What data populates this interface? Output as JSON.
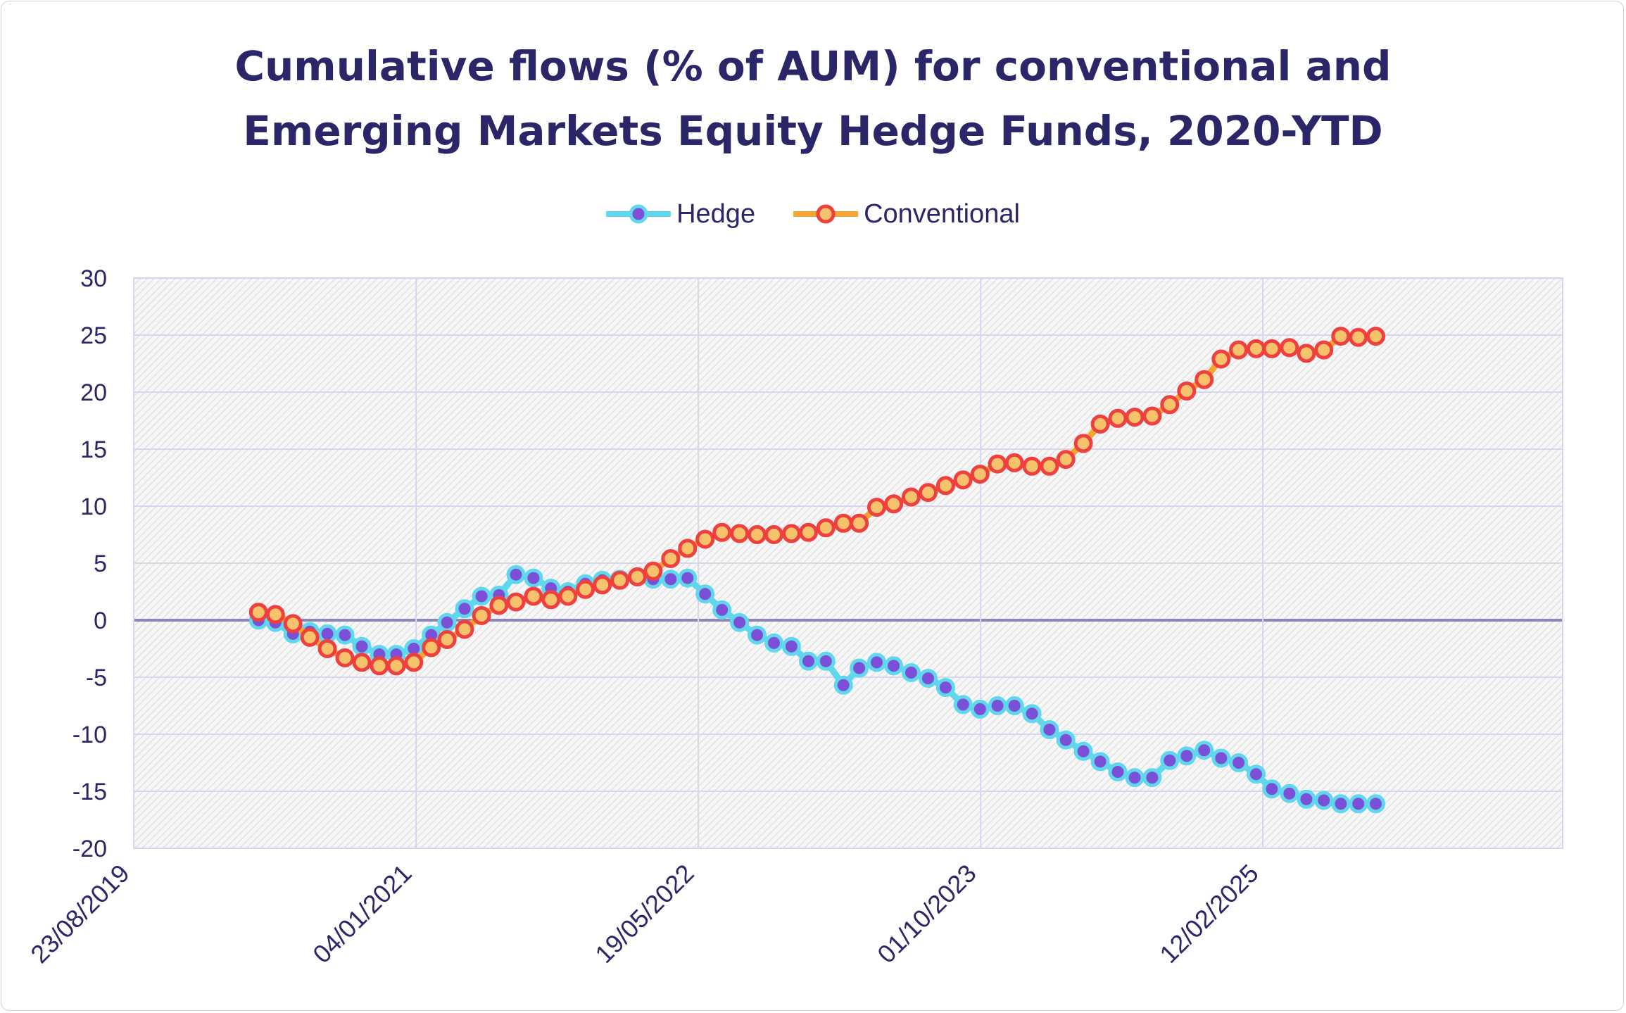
{
  "title": {
    "line1": "Cumulative flows (% of AUM) for conventional and",
    "line2": "Emerging Markets Equity Hedge Funds, 2020-YTD"
  },
  "colors": {
    "hedge_line": "#5fd8ee",
    "hedge_marker": "#7b4fd6",
    "conventional_line": "#f5a531",
    "conventional_marker_fill": "#f6c26c",
    "conventional_marker_stroke": "#ef3f3f",
    "title": "#2a2668",
    "grid": "#d6d6ee",
    "zero_line": "#8a86b8"
  },
  "chart_data": {
    "type": "line",
    "title": "Cumulative flows (% of AUM) for conventional and Emerging Markets Equity Hedge Funds, 2020-YTD",
    "xlabel": "",
    "ylabel": "",
    "x_axis": {
      "type": "date",
      "range": [
        "2019-08-23",
        "2026-07-28"
      ],
      "tick_labels": [
        "23/08/2019",
        "04/01/2021",
        "19/05/2022",
        "01/10/2023",
        "12/02/2025"
      ]
    },
    "ylim": [
      -20,
      30
    ],
    "yticks": [
      30,
      25,
      20,
      15,
      10,
      5,
      0,
      -5,
      -10,
      -15,
      -20
    ],
    "grid": true,
    "legend_position": "top",
    "series": [
      {
        "name": "Hedge",
        "points": [
          [
            "2020-03-31",
            0.0
          ],
          [
            "2020-04-30",
            -0.2
          ],
          [
            "2020-05-31",
            -1.2
          ],
          [
            "2020-06-30",
            -1.0
          ],
          [
            "2020-07-31",
            -1.2
          ],
          [
            "2020-08-31",
            -1.3
          ],
          [
            "2020-09-30",
            -2.3
          ],
          [
            "2020-10-31",
            -3.0
          ],
          [
            "2020-11-30",
            -3.0
          ],
          [
            "2020-12-31",
            -2.5
          ],
          [
            "2021-01-31",
            -1.3
          ],
          [
            "2021-02-28",
            -0.2
          ],
          [
            "2021-03-31",
            1.0
          ],
          [
            "2021-04-30",
            2.1
          ],
          [
            "2021-05-31",
            2.2
          ],
          [
            "2021-06-30",
            4.0
          ],
          [
            "2021-07-31",
            3.7
          ],
          [
            "2021-08-31",
            2.8
          ],
          [
            "2021-09-30",
            2.5
          ],
          [
            "2021-10-31",
            3.2
          ],
          [
            "2021-11-30",
            3.5
          ],
          [
            "2021-12-31",
            3.6
          ],
          [
            "2022-01-31",
            3.8
          ],
          [
            "2022-02-28",
            3.6
          ],
          [
            "2022-03-31",
            3.6
          ],
          [
            "2022-04-30",
            3.7
          ],
          [
            "2022-05-31",
            2.3
          ],
          [
            "2022-06-30",
            0.9
          ],
          [
            "2022-07-31",
            -0.2
          ],
          [
            "2022-08-31",
            -1.3
          ],
          [
            "2022-09-30",
            -2.0
          ],
          [
            "2022-10-31",
            -2.3
          ],
          [
            "2022-11-30",
            -3.6
          ],
          [
            "2022-12-31",
            -3.6
          ],
          [
            "2023-01-31",
            -5.7
          ],
          [
            "2023-02-28",
            -4.2
          ],
          [
            "2023-03-31",
            -3.7
          ],
          [
            "2023-04-30",
            -4.0
          ],
          [
            "2023-05-31",
            -4.6
          ],
          [
            "2023-06-30",
            -5.1
          ],
          [
            "2023-07-31",
            -5.9
          ],
          [
            "2023-08-31",
            -7.4
          ],
          [
            "2023-09-30",
            -7.8
          ],
          [
            "2023-10-31",
            -7.5
          ],
          [
            "2023-11-30",
            -7.5
          ],
          [
            "2023-12-31",
            -8.2
          ],
          [
            "2024-01-31",
            -9.6
          ],
          [
            "2024-02-29",
            -10.5
          ],
          [
            "2024-03-31",
            -11.5
          ],
          [
            "2024-04-30",
            -12.4
          ],
          [
            "2024-05-31",
            -13.3
          ],
          [
            "2024-06-30",
            -13.8
          ],
          [
            "2024-07-31",
            -13.8
          ],
          [
            "2024-08-31",
            -12.3
          ],
          [
            "2024-09-30",
            -11.9
          ],
          [
            "2024-10-31",
            -11.4
          ],
          [
            "2024-11-30",
            -12.1
          ],
          [
            "2024-12-31",
            -12.5
          ],
          [
            "2025-01-31",
            -13.5
          ],
          [
            "2025-02-28",
            -14.8
          ],
          [
            "2025-03-31",
            -15.2
          ],
          [
            "2025-04-30",
            -15.7
          ],
          [
            "2025-05-31",
            -15.8
          ],
          [
            "2025-06-30",
            -16.1
          ],
          [
            "2025-07-31",
            -16.1
          ],
          [
            "2025-08-31",
            -16.1
          ]
        ]
      },
      {
        "name": "Conventional",
        "points": [
          [
            "2020-03-31",
            0.7
          ],
          [
            "2020-04-30",
            0.5
          ],
          [
            "2020-05-31",
            -0.3
          ],
          [
            "2020-06-30",
            -1.5
          ],
          [
            "2020-07-31",
            -2.5
          ],
          [
            "2020-08-31",
            -3.3
          ],
          [
            "2020-09-30",
            -3.7
          ],
          [
            "2020-10-31",
            -4.0
          ],
          [
            "2020-11-30",
            -4.0
          ],
          [
            "2020-12-31",
            -3.7
          ],
          [
            "2021-01-31",
            -2.4
          ],
          [
            "2021-02-28",
            -1.7
          ],
          [
            "2021-03-31",
            -0.8
          ],
          [
            "2021-04-30",
            0.4
          ],
          [
            "2021-05-31",
            1.3
          ],
          [
            "2021-06-30",
            1.6
          ],
          [
            "2021-07-31",
            2.1
          ],
          [
            "2021-08-31",
            1.8
          ],
          [
            "2021-09-30",
            2.1
          ],
          [
            "2021-10-31",
            2.7
          ],
          [
            "2021-11-30",
            3.1
          ],
          [
            "2021-12-31",
            3.5
          ],
          [
            "2022-01-31",
            3.8
          ],
          [
            "2022-02-28",
            4.3
          ],
          [
            "2022-03-31",
            5.4
          ],
          [
            "2022-04-30",
            6.3
          ],
          [
            "2022-05-31",
            7.1
          ],
          [
            "2022-06-30",
            7.7
          ],
          [
            "2022-07-31",
            7.6
          ],
          [
            "2022-08-31",
            7.5
          ],
          [
            "2022-09-30",
            7.5
          ],
          [
            "2022-10-31",
            7.6
          ],
          [
            "2022-11-30",
            7.7
          ],
          [
            "2022-12-31",
            8.1
          ],
          [
            "2023-01-31",
            8.5
          ],
          [
            "2023-02-28",
            8.5
          ],
          [
            "2023-03-31",
            9.9
          ],
          [
            "2023-04-30",
            10.2
          ],
          [
            "2023-05-31",
            10.8
          ],
          [
            "2023-06-30",
            11.2
          ],
          [
            "2023-07-31",
            11.8
          ],
          [
            "2023-08-31",
            12.3
          ],
          [
            "2023-09-30",
            12.8
          ],
          [
            "2023-10-31",
            13.7
          ],
          [
            "2023-11-30",
            13.8
          ],
          [
            "2023-12-31",
            13.5
          ],
          [
            "2024-01-31",
            13.5
          ],
          [
            "2024-02-29",
            14.1
          ],
          [
            "2024-03-31",
            15.5
          ],
          [
            "2024-04-30",
            17.2
          ],
          [
            "2024-05-31",
            17.7
          ],
          [
            "2024-06-30",
            17.8
          ],
          [
            "2024-07-31",
            17.9
          ],
          [
            "2024-08-31",
            18.9
          ],
          [
            "2024-09-30",
            20.1
          ],
          [
            "2024-10-31",
            21.1
          ],
          [
            "2024-11-30",
            22.9
          ],
          [
            "2024-12-31",
            23.7
          ],
          [
            "2025-01-31",
            23.8
          ],
          [
            "2025-02-28",
            23.8
          ],
          [
            "2025-03-31",
            23.9
          ],
          [
            "2025-04-30",
            23.4
          ],
          [
            "2025-05-31",
            23.7
          ],
          [
            "2025-06-30",
            24.9
          ],
          [
            "2025-07-31",
            24.8
          ],
          [
            "2025-08-31",
            24.9
          ]
        ]
      }
    ]
  }
}
